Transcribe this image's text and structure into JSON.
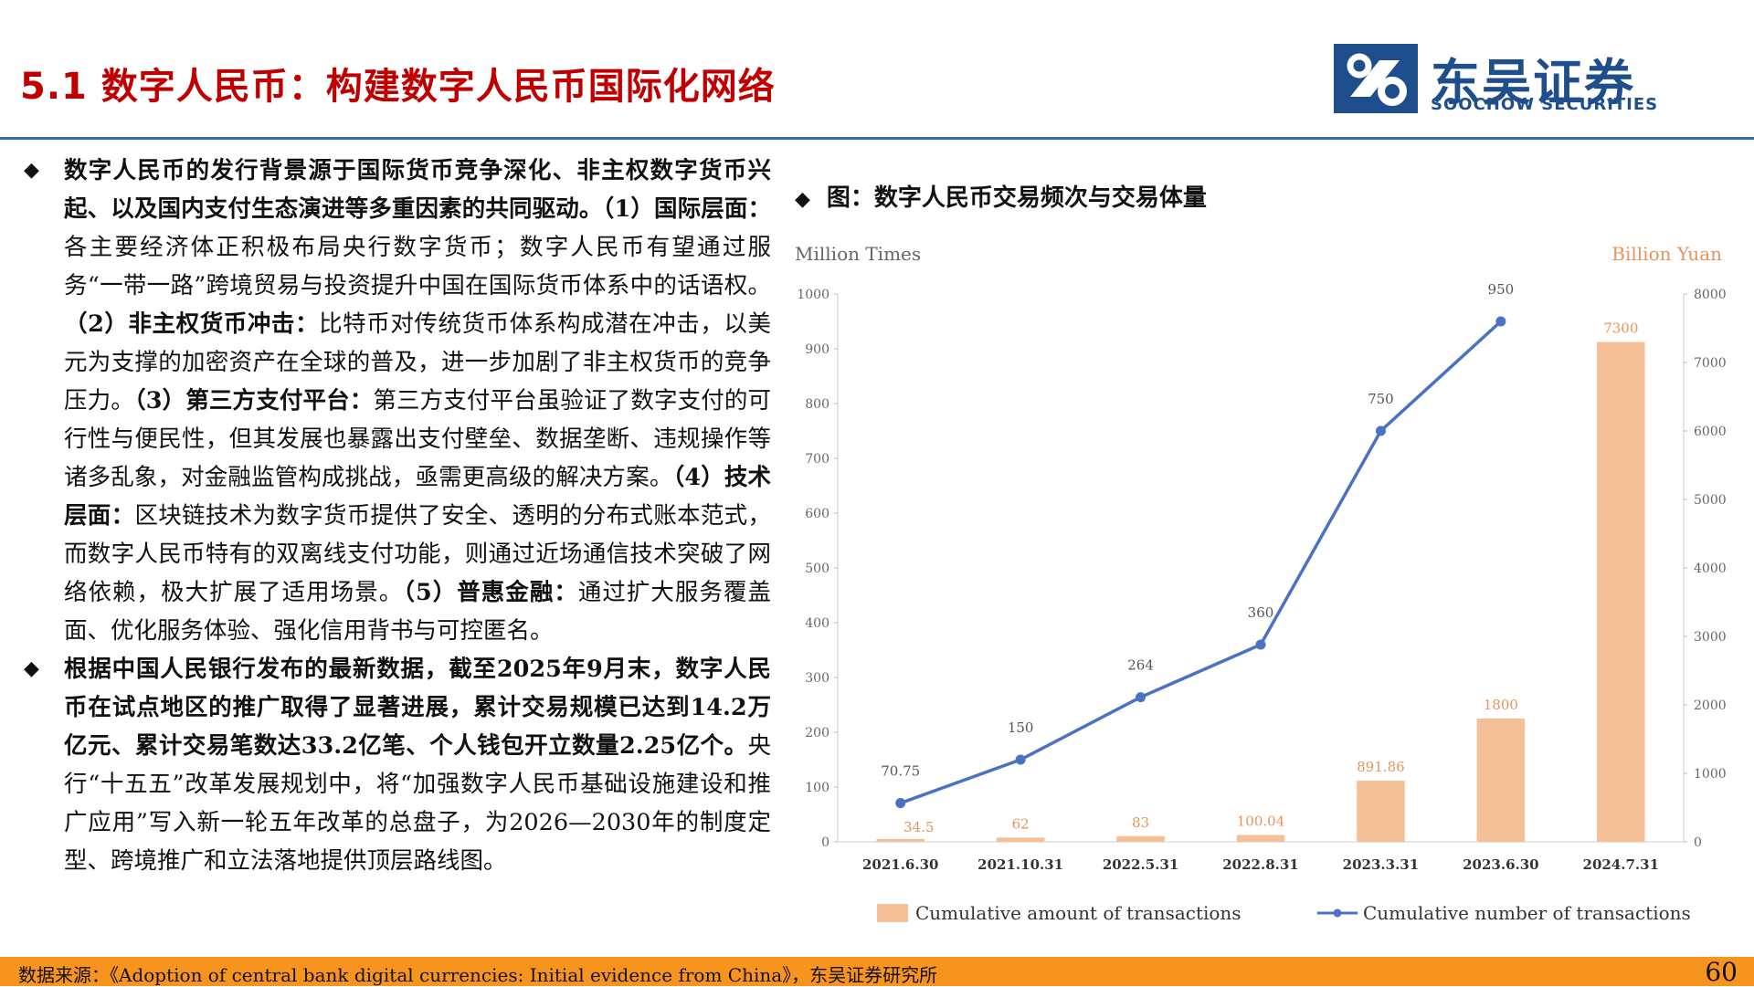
{
  "page_title": "5.1 数字人民币：构建数字人民币国际化网络",
  "logo": {
    "cn": "东吴证券",
    "en": "SOOCHOW SECURITIES"
  },
  "paragraph1": [
    {
      "text": "数字人民币的发行背景源于国际货币竞争深化、非主权数字货币兴起、以及国内支付生态演进等多重因素的共同驱动。（1）",
      "bold": true
    },
    {
      "text": "国际层面：",
      "bold": true
    },
    {
      "text": "各主要经济体正积极布局央行数字货币；数字人民币有望通过服务“一带一路”跨境贸易与投资提升中国在国际货币体系中的话语权。",
      "bold": false
    },
    {
      "text": "（2）非主权货币冲击：",
      "bold": true
    },
    {
      "text": "比特币对传统货币体系构成潜在冲击，以美元为支撑的加密资产在全球的普及，进一步加剧了非主权货币的竞争压力。",
      "bold": false
    },
    {
      "text": "（3）第三方支付平台：",
      "bold": true
    },
    {
      "text": "第三方支付平台虽验证了数字支付的可行性与便民性，但其发展也暴露出支付壁垒、数据垄断、违规操作等诸多乱象，对金融监管构成挑战，亟需更高级的解决方案。",
      "bold": false
    },
    {
      "text": "（4）技术层面：",
      "bold": true
    },
    {
      "text": "区块链技术为数字货币提供了安全、透明的分布式账本范式，而数字人民币特有的双离线支付功能，则通过近场通信技术突破了网络依赖，极大扩展了适用场景。",
      "bold": false
    },
    {
      "text": "（5）普惠金融：",
      "bold": true
    },
    {
      "text": "通过扩大服务覆盖面、优化服务体验、强化信用背书与可控匿名。",
      "bold": false
    }
  ],
  "paragraph2": [
    {
      "text": "根据中国人民银行发布的最新数据，截至2025年9月末，数字人民币在试点地区的推广取得了显著进展，累计交易规模已达到14.2万亿元、累计交易笔数达33.2亿笔、个人钱包开立数量2.25亿个。",
      "bold": true
    },
    {
      "text": "央行“十五五”改革发展规划中，将“加强数字人民币基础设施建设和推广应用”写入新一轮五年改革的总盘子，为2026—2030年的制度定型、跨境推广和立法落地提供顶层路线图。",
      "bold": false
    }
  ],
  "bullet_symbol": "◆",
  "chart_title": "图：数字人民币交易频次与交易体量",
  "chart_data": {
    "type": "bar",
    "categories": [
      "2021.6.30",
      "2021.10.31",
      "2022.5.31",
      "2022.8.31",
      "2023.3.31",
      "2023.6.30",
      "2024.7.31"
    ],
    "series": [
      {
        "name": "Cumulative amount of transactions",
        "type": "bar",
        "axis": "right",
        "values": [
          34.5,
          62,
          83,
          100.04,
          891.86,
          1800,
          7300
        ],
        "labels": [
          "34.5",
          "62",
          "83",
          "100.04",
          "891.86",
          "1800",
          "7300"
        ]
      },
      {
        "name": "Cumulative number of transactions",
        "type": "line",
        "axis": "left",
        "values": [
          70.75,
          150,
          264,
          360,
          750,
          950,
          null
        ],
        "labels": [
          "70.75",
          "150",
          "264",
          "360",
          "750",
          "950",
          ""
        ]
      }
    ],
    "left_axis": {
      "label": "Million Times",
      "range": [
        0,
        1000
      ],
      "ticks": [
        "0",
        "100",
        "200",
        "300",
        "400",
        "500",
        "600",
        "700",
        "800",
        "900",
        "1000"
      ]
    },
    "right_axis": {
      "label": "Billion Yuan",
      "range": [
        0,
        8000
      ],
      "ticks": [
        "0",
        "1000",
        "2000",
        "3000",
        "4000",
        "5000",
        "6000",
        "7000",
        "8000"
      ]
    },
    "grid": false,
    "legend_position": "bottom",
    "colors": {
      "bar": "#f5bf98",
      "bar_label": "#e8935a",
      "line": "#4a72c4",
      "axis_text": "#666666"
    }
  },
  "footer": {
    "source": "数据来源：《Adoption of central bank digital currencies: Initial evidence from China》，东吴证券研究所",
    "page_number": "60"
  }
}
